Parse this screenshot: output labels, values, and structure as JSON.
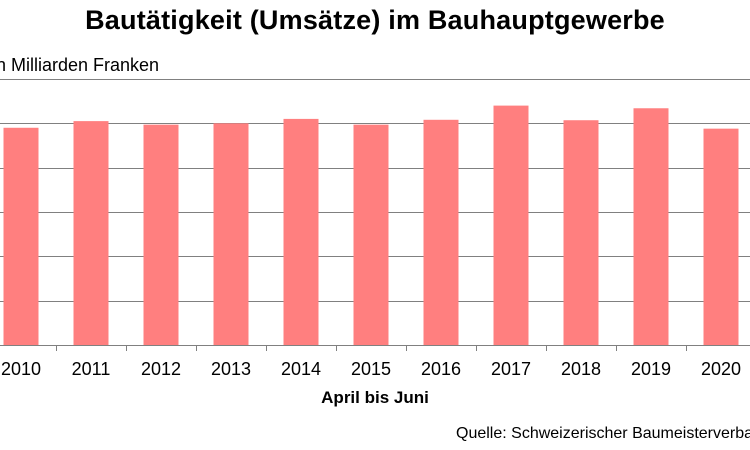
{
  "chart_data": {
    "type": "bar",
    "title": "Bautätigkeit (Umsätze) im Bauhauptgewerbe",
    "ylabel": "in Milliarden Franken",
    "xlabel": "April bis Juni",
    "categories": [
      "2010",
      "2011",
      "2012",
      "2013",
      "2014",
      "2015",
      "2016",
      "2017",
      "2018",
      "2019",
      "2020"
    ],
    "values": [
      4.9,
      5.05,
      4.97,
      5.0,
      5.1,
      4.97,
      5.08,
      5.4,
      5.07,
      5.34,
      4.88
    ],
    "ylim": [
      0,
      6
    ],
    "grid": true,
    "bar_color": "#ff7f7f",
    "gridline_color": "#808080",
    "source": "Quelle: Schweizerischer Baumeisterverband"
  }
}
